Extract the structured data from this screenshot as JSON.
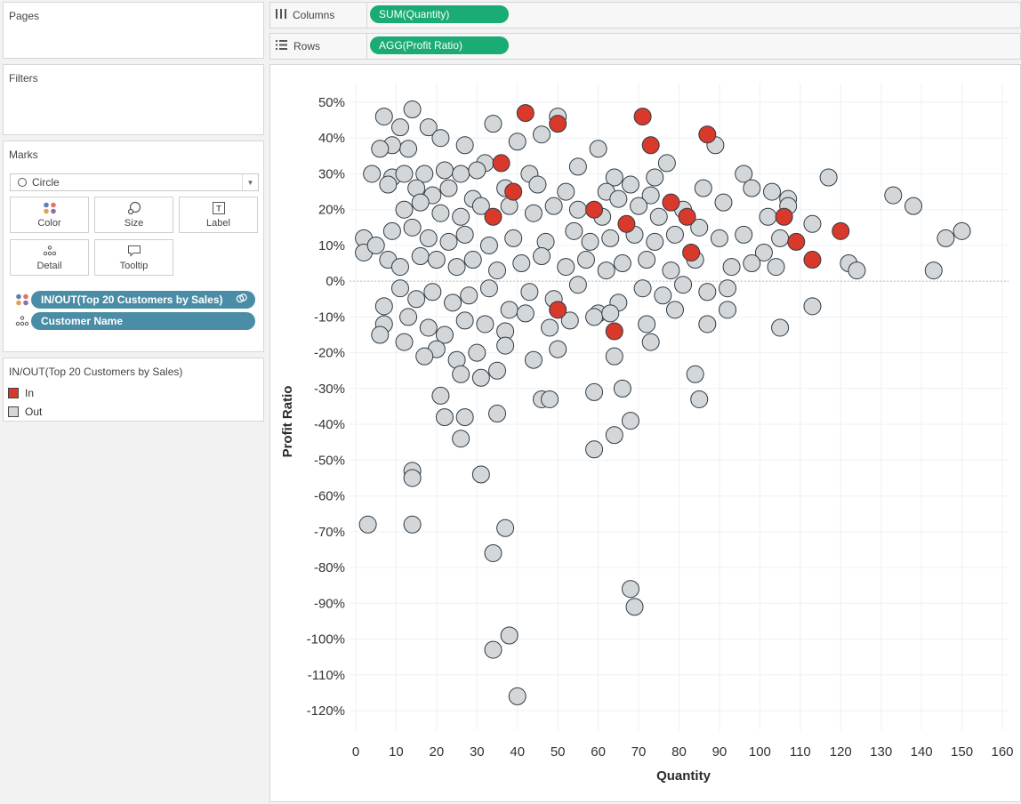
{
  "pages": {
    "title": "Pages"
  },
  "filters": {
    "title": "Filters"
  },
  "marks": {
    "title": "Marks",
    "mark_type": "Circle",
    "buttons": {
      "color": "Color",
      "size": "Size",
      "label": "Label",
      "detail": "Detail",
      "tooltip": "Tooltip"
    },
    "fields": [
      {
        "label": "IN/OUT(Top 20 Customers by Sales)",
        "icon": "color-dots-icon"
      },
      {
        "label": "Customer Name",
        "icon": "detail-dots-icon"
      }
    ]
  },
  "legend": {
    "title": "IN/OUT(Top 20 Customers by Sales)",
    "items": [
      {
        "label": "In",
        "color": "#d8392b"
      },
      {
        "label": "Out",
        "color": "#d4d7d9"
      }
    ]
  },
  "shelves": {
    "columns": {
      "label": "Columns",
      "pill": "SUM(Quantity)"
    },
    "rows": {
      "label": "Rows",
      "pill": "AGG(Profit Ratio)"
    }
  },
  "colors": {
    "in": "#d8392b",
    "out": "#d4d7d9",
    "shelf_pill": "#1aac74",
    "field_pill": "#4b8da6"
  },
  "chart_data": {
    "type": "scatter",
    "xlabel": "Quantity",
    "ylabel": "Profit Ratio",
    "xlim": [
      0,
      160
    ],
    "ylim": [
      -120,
      50
    ],
    "x_ticks": [
      "0",
      "10",
      "20",
      "30",
      "40",
      "50",
      "60",
      "70",
      "80",
      "90",
      "100",
      "110",
      "120",
      "130",
      "140",
      "150",
      "160"
    ],
    "y_ticks": [
      "50%",
      "40%",
      "30%",
      "20%",
      "10%",
      "0%",
      "-10%",
      "-20%",
      "-30%",
      "-40%",
      "-50%",
      "-60%",
      "-70%",
      "-80%",
      "-90%",
      "-100%",
      "-110%",
      "-120%"
    ],
    "grid": true,
    "series": [
      {
        "name": "In",
        "points": [
          [
            42,
            47
          ],
          [
            50,
            44
          ],
          [
            71,
            46
          ],
          [
            73,
            38
          ],
          [
            87,
            41
          ],
          [
            36,
            33
          ],
          [
            39,
            25
          ],
          [
            34,
            18
          ],
          [
            59,
            20
          ],
          [
            67,
            16
          ],
          [
            78,
            22
          ],
          [
            82,
            18
          ],
          [
            83,
            8
          ],
          [
            106,
            18
          ],
          [
            109,
            11
          ],
          [
            113,
            6
          ],
          [
            120,
            14
          ],
          [
            50,
            -8
          ],
          [
            64,
            -14
          ]
        ]
      },
      {
        "name": "Out",
        "points": [
          [
            14,
            48
          ],
          [
            7,
            46
          ],
          [
            50,
            46
          ],
          [
            46,
            41
          ],
          [
            34,
            44
          ],
          [
            18,
            43
          ],
          [
            11,
            43
          ],
          [
            21,
            40
          ],
          [
            60,
            37
          ],
          [
            89,
            38
          ],
          [
            27,
            38
          ],
          [
            13,
            37
          ],
          [
            9,
            38
          ],
          [
            40,
            39
          ],
          [
            6,
            37
          ],
          [
            77,
            33
          ],
          [
            32,
            33
          ],
          [
            4,
            30
          ],
          [
            9,
            29
          ],
          [
            12,
            30
          ],
          [
            17,
            30
          ],
          [
            22,
            31
          ],
          [
            26,
            30
          ],
          [
            30,
            31
          ],
          [
            43,
            30
          ],
          [
            55,
            32
          ],
          [
            64,
            29
          ],
          [
            74,
            29
          ],
          [
            96,
            30
          ],
          [
            117,
            29
          ],
          [
            133,
            24
          ],
          [
            138,
            21
          ],
          [
            8,
            27
          ],
          [
            15,
            26
          ],
          [
            19,
            24
          ],
          [
            23,
            26
          ],
          [
            29,
            23
          ],
          [
            37,
            26
          ],
          [
            45,
            27
          ],
          [
            52,
            25
          ],
          [
            62,
            25
          ],
          [
            68,
            27
          ],
          [
            73,
            24
          ],
          [
            86,
            26
          ],
          [
            98,
            26
          ],
          [
            103,
            25
          ],
          [
            107,
            23
          ],
          [
            12,
            20
          ],
          [
            16,
            22
          ],
          [
            21,
            19
          ],
          [
            26,
            18
          ],
          [
            31,
            21
          ],
          [
            38,
            21
          ],
          [
            44,
            19
          ],
          [
            49,
            21
          ],
          [
            55,
            20
          ],
          [
            61,
            18
          ],
          [
            65,
            23
          ],
          [
            70,
            21
          ],
          [
            75,
            18
          ],
          [
            81,
            20
          ],
          [
            91,
            22
          ],
          [
            102,
            18
          ],
          [
            107,
            21
          ],
          [
            9,
            14
          ],
          [
            14,
            15
          ],
          [
            18,
            12
          ],
          [
            23,
            11
          ],
          [
            27,
            13
          ],
          [
            33,
            10
          ],
          [
            39,
            12
          ],
          [
            47,
            11
          ],
          [
            54,
            14
          ],
          [
            58,
            11
          ],
          [
            63,
            12
          ],
          [
            69,
            13
          ],
          [
            74,
            11
          ],
          [
            79,
            13
          ],
          [
            85,
            15
          ],
          [
            90,
            12
          ],
          [
            96,
            13
          ],
          [
            101,
            8
          ],
          [
            105,
            12
          ],
          [
            113,
            16
          ],
          [
            146,
            12
          ],
          [
            150,
            14
          ],
          [
            2,
            12
          ],
          [
            2,
            8
          ],
          [
            5,
            10
          ],
          [
            8,
            6
          ],
          [
            11,
            4
          ],
          [
            16,
            7
          ],
          [
            20,
            6
          ],
          [
            25,
            4
          ],
          [
            29,
            6
          ],
          [
            35,
            3
          ],
          [
            41,
            5
          ],
          [
            46,
            7
          ],
          [
            52,
            4
          ],
          [
            57,
            6
          ],
          [
            62,
            3
          ],
          [
            66,
            5
          ],
          [
            72,
            6
          ],
          [
            78,
            3
          ],
          [
            84,
            6
          ],
          [
            93,
            4
          ],
          [
            98,
            5
          ],
          [
            104,
            4
          ],
          [
            122,
            5
          ],
          [
            124,
            3
          ],
          [
            143,
            3
          ],
          [
            7,
            -7
          ],
          [
            11,
            -2
          ],
          [
            15,
            -5
          ],
          [
            19,
            -3
          ],
          [
            24,
            -6
          ],
          [
            28,
            -4
          ],
          [
            33,
            -2
          ],
          [
            38,
            -8
          ],
          [
            43,
            -3
          ],
          [
            49,
            -5
          ],
          [
            55,
            -1
          ],
          [
            60,
            -9
          ],
          [
            65,
            -6
          ],
          [
            71,
            -2
          ],
          [
            76,
            -4
          ],
          [
            81,
            -1
          ],
          [
            87,
            -3
          ],
          [
            92,
            -2
          ],
          [
            7,
            -12
          ],
          [
            13,
            -10
          ],
          [
            18,
            -13
          ],
          [
            22,
            -15
          ],
          [
            27,
            -11
          ],
          [
            32,
            -12
          ],
          [
            37,
            -14
          ],
          [
            42,
            -9
          ],
          [
            48,
            -13
          ],
          [
            53,
            -11
          ],
          [
            59,
            -10
          ],
          [
            63,
            -9
          ],
          [
            72,
            -12
          ],
          [
            79,
            -8
          ],
          [
            87,
            -12
          ],
          [
            92,
            -8
          ],
          [
            105,
            -13
          ],
          [
            113,
            -7
          ],
          [
            6,
            -15
          ],
          [
            12,
            -17
          ],
          [
            20,
            -19
          ],
          [
            25,
            -22
          ],
          [
            30,
            -20
          ],
          [
            37,
            -18
          ],
          [
            44,
            -22
          ],
          [
            50,
            -19
          ],
          [
            64,
            -21
          ],
          [
            73,
            -17
          ],
          [
            17,
            -21
          ],
          [
            26,
            -26
          ],
          [
            31,
            -27
          ],
          [
            35,
            -25
          ],
          [
            46,
            -33
          ],
          [
            48,
            -33
          ],
          [
            59,
            -31
          ],
          [
            66,
            -30
          ],
          [
            84,
            -26
          ],
          [
            21,
            -32
          ],
          [
            22,
            -38
          ],
          [
            27,
            -38
          ],
          [
            35,
            -37
          ],
          [
            26,
            -44
          ],
          [
            85,
            -33
          ],
          [
            64,
            -43
          ],
          [
            68,
            -39
          ],
          [
            59,
            -47
          ],
          [
            14,
            -53
          ],
          [
            14,
            -55
          ],
          [
            31,
            -54
          ],
          [
            3,
            -68
          ],
          [
            14,
            -68
          ],
          [
            37,
            -69
          ],
          [
            34,
            -76
          ],
          [
            68,
            -86
          ],
          [
            69,
            -91
          ],
          [
            38,
            -99
          ],
          [
            34,
            -103
          ],
          [
            40,
            -116
          ]
        ]
      }
    ]
  }
}
